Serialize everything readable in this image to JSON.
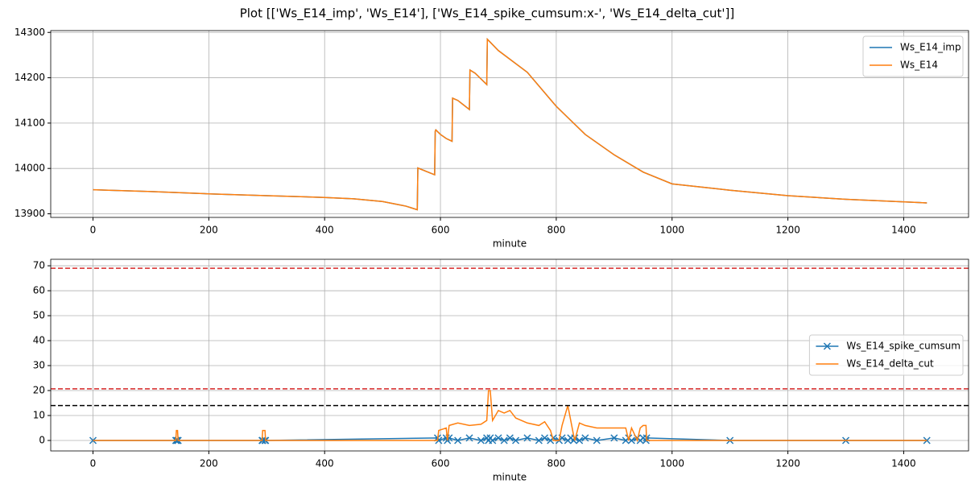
{
  "title": "Plot [['Ws_E14_imp', 'Ws_E14'], ['Ws_E14_spike_cumsum:x-', 'Ws_E14_delta_cut']]",
  "chart_data": [
    {
      "type": "line",
      "x_label": "minute",
      "x": [
        0,
        100,
        180,
        200,
        300,
        400,
        450,
        500,
        540,
        560,
        561,
        590,
        591,
        592,
        600,
        610,
        620,
        621,
        630,
        650,
        651,
        660,
        680,
        681,
        700,
        750,
        800,
        850,
        900,
        950,
        1000,
        1100,
        1200,
        1300,
        1440
      ],
      "series": [
        {
          "name": "Ws_E14_imp",
          "color": "#1f77b4",
          "values": [
            13953,
            13949,
            13945,
            13944,
            13940,
            13936,
            13933,
            13927,
            13917,
            13909,
            14001,
            13986,
            14082,
            14085,
            14075,
            14066,
            14060,
            14155,
            14150,
            14130,
            14217,
            14210,
            14185,
            14285,
            14260,
            14212,
            14137,
            14075,
            14030,
            13992,
            13966,
            13952,
            13940,
            13932,
            13924
          ]
        },
        {
          "name": "Ws_E14",
          "color": "#ff7f0e",
          "values": [
            13953,
            13949,
            13945,
            13944,
            13940,
            13936,
            13933,
            13927,
            13917,
            13909,
            14001,
            13986,
            14082,
            14085,
            14075,
            14066,
            14060,
            14155,
            14150,
            14130,
            14217,
            14210,
            14185,
            14285,
            14260,
            14212,
            14137,
            14075,
            14030,
            13992,
            13966,
            13952,
            13940,
            13932,
            13924
          ]
        }
      ],
      "xlim": [
        -73,
        1512
      ],
      "xticks": [
        0,
        200,
        400,
        600,
        800,
        1000,
        1200,
        1400
      ],
      "ylim": [
        13892,
        14304
      ],
      "yticks": [
        13900,
        14000,
        14100,
        14200,
        14300
      ],
      "grid": true,
      "legend": "upper right"
    },
    {
      "type": "line",
      "x_label": "minute",
      "x": [
        0,
        143,
        144,
        146,
        147,
        292,
        293,
        297,
        298,
        595,
        597,
        610,
        612,
        615,
        630,
        650,
        670,
        680,
        683,
        686,
        690,
        700,
        710,
        720,
        730,
        750,
        770,
        780,
        790,
        795,
        805,
        810,
        820,
        825,
        830,
        832,
        840,
        850,
        870,
        900,
        920,
        925,
        930,
        940,
        945,
        950,
        955,
        956,
        1100,
        1300,
        1440
      ],
      "series": [
        {
          "name": "Ws_E14_spike_cumsum",
          "color": "#1f77b4",
          "marker": "x",
          "values": [
            0,
            0,
            0,
            0,
            0,
            0,
            0,
            0,
            0,
            1,
            0,
            1,
            0,
            1,
            0,
            1,
            0,
            1,
            0,
            1,
            0,
            1,
            0,
            1,
            0,
            1,
            0,
            1,
            0,
            1,
            0,
            1,
            0,
            1,
            0,
            1,
            0,
            1,
            0,
            1,
            0,
            1,
            0,
            1,
            0,
            1,
            0,
            1,
            0,
            0,
            0
          ]
        },
        {
          "name": "Ws_E14_delta_cut",
          "color": "#ff7f0e",
          "values": [
            0,
            0,
            4,
            4,
            0,
            0,
            4,
            4,
            0,
            0,
            4,
            5,
            0,
            6,
            7,
            6,
            6.5,
            8,
            20,
            20,
            8,
            12,
            11,
            12,
            9,
            7,
            6,
            7.5,
            4,
            0,
            0,
            6,
            14,
            8,
            2,
            0,
            7,
            6,
            5,
            5,
            5,
            0,
            5,
            0,
            5,
            6,
            6,
            0,
            0,
            0,
            0
          ]
        }
      ],
      "hlines": [
        {
          "value": 69,
          "color": "#d62728"
        },
        {
          "value": 20.7,
          "color": "#d62728"
        },
        {
          "value": 14,
          "color": "#000000"
        }
      ],
      "xlim": [
        -73,
        1512
      ],
      "xticks": [
        0,
        200,
        400,
        600,
        800,
        1000,
        1200,
        1400
      ],
      "ylim": [
        -4.2,
        72.6
      ],
      "yticks": [
        0,
        10,
        20,
        30,
        40,
        50,
        60,
        70
      ],
      "grid": true,
      "legend": "center right"
    }
  ]
}
